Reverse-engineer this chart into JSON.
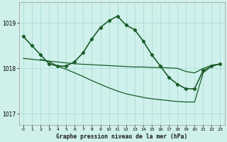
{
  "bg_color": "#cff0eb",
  "grid_color": "#aaddd8",
  "line_color": "#1a5c28",
  "title": "Graphe pression niveau de la mer (hPa)",
  "ylim": [
    1016.75,
    1019.45
  ],
  "xlim": [
    -0.5,
    23.5
  ],
  "yticks": [
    1017,
    1018,
    1019
  ],
  "xticks": [
    0,
    1,
    2,
    3,
    4,
    5,
    6,
    7,
    8,
    9,
    10,
    11,
    12,
    13,
    14,
    15,
    16,
    17,
    18,
    19,
    20,
    21,
    22,
    23
  ],
  "line1": {
    "x": [
      0,
      1,
      2,
      3,
      4,
      5,
      6,
      7,
      8,
      9,
      10,
      11,
      12,
      13,
      14,
      15,
      16,
      17,
      18,
      19,
      20,
      21,
      22,
      23
    ],
    "y": [
      1018.7,
      1018.5,
      1018.3,
      1018.1,
      1018.05,
      1018.05,
      1018.15,
      1018.35,
      1018.65,
      1018.9,
      1019.05,
      1019.15,
      1018.95,
      1018.85,
      1018.6,
      1018.3,
      1018.05,
      1017.8,
      1017.65,
      1017.55,
      1017.55,
      1017.95,
      1018.05,
      1018.1
    ],
    "lw": 1.2,
    "marker": "D",
    "markersize": 2.2
  },
  "line2": {
    "x": [
      2,
      3,
      4,
      5,
      6,
      7,
      8,
      9,
      10,
      11,
      12,
      13,
      14,
      15,
      16,
      17,
      18,
      19,
      20,
      21,
      22,
      23
    ],
    "y": [
      1018.2,
      1018.15,
      1018.05,
      1017.98,
      1017.9,
      1017.82,
      1017.73,
      1017.65,
      1017.57,
      1017.5,
      1017.44,
      1017.4,
      1017.36,
      1017.33,
      1017.31,
      1017.29,
      1017.27,
      1017.26,
      1017.26,
      1017.9,
      1018.05,
      1018.1
    ],
    "lw": 0.9
  },
  "line3": {
    "x": [
      0,
      1,
      2,
      3,
      4,
      5,
      6,
      7,
      8,
      9,
      10,
      11,
      12,
      13,
      14,
      15,
      16,
      17,
      18,
      19,
      20,
      21,
      22,
      23
    ],
    "y": [
      1018.22,
      1018.2,
      1018.18,
      1018.16,
      1018.14,
      1018.12,
      1018.1,
      1018.09,
      1018.08,
      1018.07,
      1018.06,
      1018.05,
      1018.04,
      1018.03,
      1018.03,
      1018.02,
      1018.02,
      1018.01,
      1018.0,
      1017.93,
      1017.9,
      1018.0,
      1018.07,
      1018.1
    ],
    "lw": 0.9
  }
}
